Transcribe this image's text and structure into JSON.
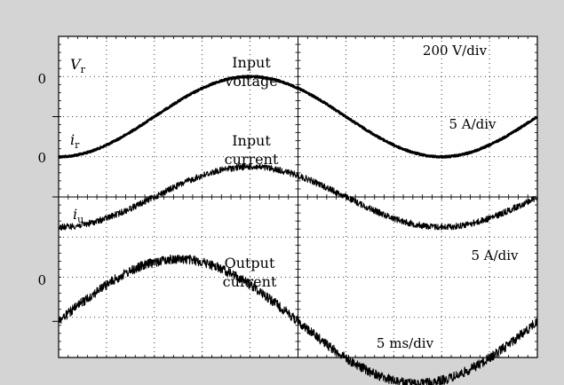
{
  "figure": {
    "background_color": "#d4d4d4",
    "screen_color": "#ffffff",
    "trace_color": "#000000"
  },
  "chart_data": {
    "type": "line",
    "x_divisions": 10,
    "y_divisions": 8,
    "x_scale": "5 ms/div",
    "traces": [
      {
        "symbol": "V",
        "subscript": "r",
        "label_line1": "Input",
        "label_line2": "voltage",
        "scale": "200 V/div",
        "zero_label": "0",
        "zero_level_div": 6.0,
        "amplitude_div": 1.0,
        "period_div": 8.0,
        "phase_deg": -90,
        "noise_div": 0.02
      },
      {
        "symbol": "i",
        "subscript": "r",
        "label_line1": "Input",
        "label_line2": "current",
        "scale": "5 A/div",
        "zero_label": "0",
        "zero_level_div": 4.0,
        "amplitude_div": 0.75,
        "period_div": 8.0,
        "phase_deg": -90,
        "noise_div": 0.08
      },
      {
        "symbol": "i",
        "subscript": "u",
        "label_line1": "Output",
        "label_line2": "current",
        "scale": "5 A/div",
        "zero_label": "0",
        "zero_level_div": 0.9,
        "amplitude_div": 1.55,
        "period_div": 10.0,
        "phase_deg": 0,
        "noise_div": 0.12
      }
    ]
  }
}
